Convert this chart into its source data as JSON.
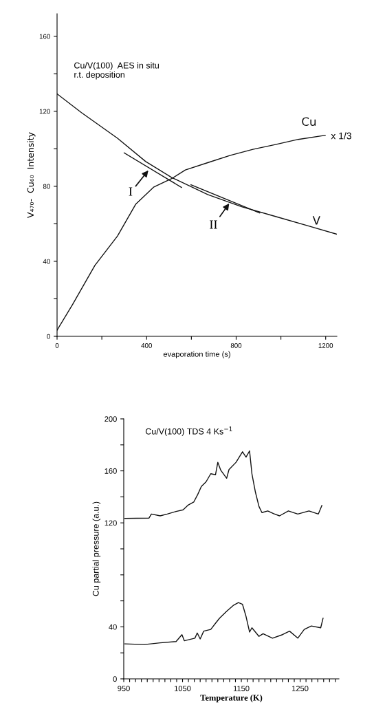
{
  "chart_data": [
    {
      "type": "line",
      "title": "Cu/V(100)  AES in situ\nr.t. deposition",
      "xlabel": "evaporation time (s)",
      "ylabel": "V₄₇₀-  Cu₆₀  Intensity",
      "xlim": [
        0,
        1250
      ],
      "ylim": [
        0,
        172
      ],
      "xticks": [
        0,
        {
          "value": 200,
          "label": null
        },
        400,
        {
          "value": 600,
          "label": null
        },
        800,
        {
          "value": 1000,
          "label": null
        },
        1200
      ],
      "yticks": [
        0,
        {
          "value": 20,
          "label": null
        },
        40,
        {
          "value": 60,
          "label": null
        },
        80,
        {
          "value": 100,
          "label": null
        },
        120,
        {
          "value": 140,
          "label": null
        },
        160
      ],
      "grid": false,
      "legend": false,
      "series": [
        {
          "name": "V",
          "color": "#111111",
          "x": [
            0,
            109,
            270,
            396,
            512,
            673,
            825,
            976,
            1127,
            1248
          ],
          "values": [
            129.3,
            119.3,
            105.6,
            93.2,
            84.7,
            75.6,
            69.1,
            63.9,
            58.7,
            54.5
          ]
        },
        {
          "name": "Cu",
          "color": "#111111",
          "x": [
            0,
            69,
            169,
            270,
            351,
            431,
            512,
            573,
            673,
            774,
            875,
            976,
            1077,
            1198
          ],
          "values": [
            3.3,
            16.9,
            37.8,
            53.5,
            70.4,
            79.5,
            84.1,
            88.7,
            92.6,
            96.5,
            99.7,
            102.3,
            105,
            107.2
          ]
        },
        {
          "color": "#111111",
          "x": [
            300,
            556
          ],
          "values": [
            97.8,
            79.4
          ]
        },
        {
          "color": "#111111",
          "x": [
            598,
            905
          ],
          "values": [
            80.8,
            65.8
          ]
        }
      ],
      "annotations": [
        {
          "text": "I",
          "x": 413,
          "y": 89.3
        },
        {
          "text": "II",
          "x": 774,
          "y": 71.7
        },
        {
          "text": "x 1/3",
          "x": 1198,
          "y": 107.2
        }
      ]
    },
    {
      "type": "line",
      "title": "Cu/V(100) TDS 4 Ks$^{−1}$",
      "xlabel": "Temperature (K)",
      "ylabel": "Cu partial pressure (a.u.)",
      "xlim": [
        950,
        1316
      ],
      "ylim": [
        0,
        200
      ],
      "xticks": [
        950,
        {
          "value": 960,
          "label": null
        },
        {
          "value": 970,
          "label": null
        },
        {
          "value": 980,
          "label": null
        },
        {
          "value": 990,
          "label": null
        },
        {
          "value": 1000,
          "label": null
        },
        {
          "value": 1010,
          "label": null
        },
        {
          "value": 1020,
          "label": null
        },
        {
          "value": 1030,
          "label": null
        },
        {
          "value": 1040,
          "label": null
        },
        1050,
        {
          "value": 1060,
          "label": null
        },
        {
          "value": 1070,
          "label": null
        },
        {
          "value": 1080,
          "label": null
        },
        {
          "value": 1090,
          "label": null
        },
        {
          "value": 1100,
          "label": null
        },
        {
          "value": 1110,
          "label": null
        },
        {
          "value": 1120,
          "label": null
        },
        {
          "value": 1130,
          "label": null
        },
        {
          "value": 1140,
          "label": null
        },
        1150,
        {
          "value": 1160,
          "label": null
        },
        {
          "value": 1170,
          "label": null
        },
        {
          "value": 1180,
          "label": null
        },
        {
          "value": 1190,
          "label": null
        },
        {
          "value": 1200,
          "label": null
        },
        {
          "value": 1210,
          "label": null
        },
        {
          "value": 1220,
          "label": null
        },
        {
          "value": 1230,
          "label": null
        },
        {
          "value": 1240,
          "label": null
        },
        1250,
        {
          "value": 1260,
          "label": null
        },
        {
          "value": 1270,
          "label": null
        },
        {
          "value": 1280,
          "label": null
        },
        {
          "value": 1290,
          "label": null
        },
        {
          "value": 1300,
          "label": null
        },
        {
          "value": 1310,
          "label": null
        }
      ],
      "yticks": [
        0,
        {
          "value": 20,
          "label": null
        },
        40,
        {
          "value": 60,
          "label": null
        },
        {
          "value": 80,
          "label": null
        },
        {
          "value": 100,
          "label": null
        },
        120,
        {
          "value": 140,
          "label": null
        },
        160,
        {
          "value": 180,
          "label": null
        },
        200
      ],
      "grid": false,
      "legend": false,
      "series": [
        {
          "color": "#111111",
          "x": [
            952,
            993,
            997,
            1012,
            1024,
            1039,
            1051,
            1059,
            1069,
            1076,
            1082,
            1090,
            1098,
            1106,
            1110,
            1115,
            1125,
            1129,
            1141,
            1152,
            1158,
            1164,
            1168,
            1174,
            1180,
            1185,
            1195,
            1205,
            1215,
            1230,
            1246,
            1265,
            1281,
            1287
          ],
          "values": [
            123.4,
            123.7,
            126.8,
            125.4,
            126.8,
            128.8,
            130,
            133.5,
            136,
            142,
            148,
            151.6,
            157.8,
            157,
            166.6,
            160.5,
            154.3,
            161,
            166.6,
            174.7,
            170.6,
            175.4,
            157.8,
            143.5,
            132.6,
            127.9,
            129.2,
            127.1,
            125.4,
            129.2,
            126.8,
            129.2,
            126.8,
            133.4
          ]
        },
        {
          "color": "#111111",
          "x": [
            952,
            985,
            1012,
            1039,
            1049,
            1053,
            1071,
            1075,
            1080,
            1086,
            1098,
            1106,
            1113,
            1125,
            1137,
            1145,
            1152,
            1158,
            1164,
            1168,
            1180,
            1187,
            1203,
            1220,
            1232,
            1246,
            1257,
            1269,
            1285,
            1289
          ],
          "values": [
            26.9,
            26.4,
            27.7,
            28.7,
            34,
            29.3,
            31.3,
            35.3,
            30.7,
            36.7,
            38,
            42.7,
            46.7,
            52,
            56.7,
            58.7,
            57.3,
            48,
            36,
            39.3,
            32.7,
            34.7,
            31.3,
            34,
            36.7,
            31.3,
            38,
            40.7,
            39.3,
            46.7
          ]
        }
      ]
    }
  ]
}
